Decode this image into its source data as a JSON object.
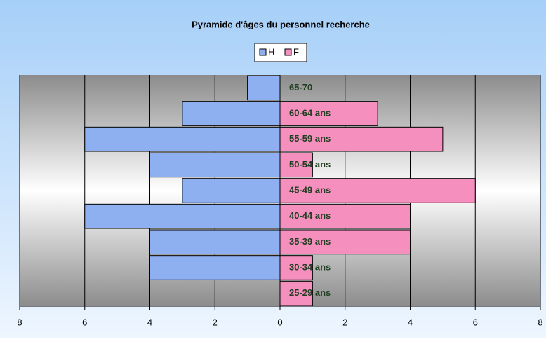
{
  "chart_data": {
    "type": "pyramid",
    "title": "Pyramide d'âges du personnel recherche",
    "categories": [
      "65-70",
      "60-64 ans",
      "55-59 ans",
      "50-54 ans",
      "45-49 ans",
      "40-44 ans",
      "35-39 ans",
      "30-34 ans",
      "25-29 ans"
    ],
    "series": [
      {
        "name": "H",
        "color": "#8fb0f0",
        "values": [
          -1,
          -3,
          -6,
          -4,
          -3,
          -6,
          -4,
          -4,
          0
        ]
      },
      {
        "name": "F",
        "color": "#f48fbe",
        "values": [
          0,
          3,
          5,
          1,
          6,
          4,
          4,
          1,
          1
        ]
      }
    ],
    "xlim": [
      -8,
      8
    ],
    "xticks": [
      {
        "value": -8,
        "label": "8"
      },
      {
        "value": -6,
        "label": "6"
      },
      {
        "value": -4,
        "label": "4"
      },
      {
        "value": -2,
        "label": "2"
      },
      0,
      2,
      4,
      6,
      8
    ],
    "grid": true
  }
}
